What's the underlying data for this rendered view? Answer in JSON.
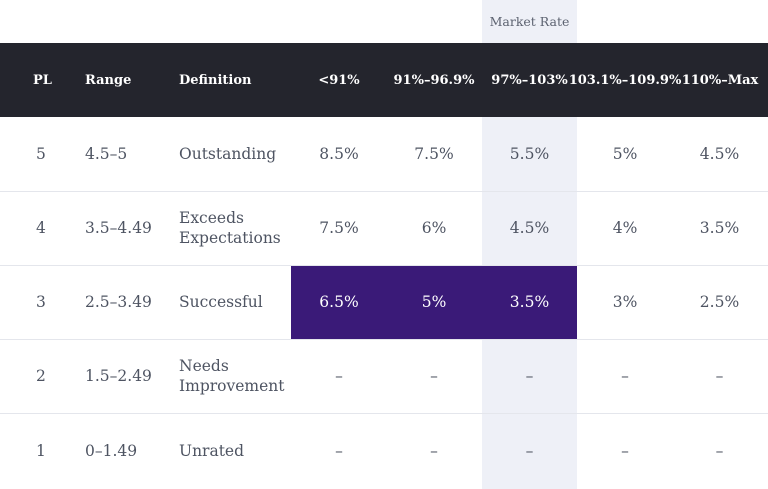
{
  "market_rate_label": "Market Rate",
  "headers": [
    "PL",
    "Range",
    "Definition",
    "<91%",
    "91%–96.9%",
    "97%–103%",
    "103.1%–109.9%",
    "110%–Max"
  ],
  "rows": [
    {
      "pl": "5",
      "range": "4.5–5",
      "definition": [
        "Outstanding"
      ],
      "values": [
        "8.5%",
        "7.5%",
        "5.5%",
        "5%",
        "4.5%"
      ]
    },
    {
      "pl": "4",
      "range": "3.5–4.49",
      "definition": [
        "Exceeds",
        "Expectations"
      ],
      "values": [
        "7.5%",
        "6%",
        "4.5%",
        "4%",
        "3.5%"
      ]
    },
    {
      "pl": "3",
      "range": "2.5–3.49",
      "definition": [
        "Successful"
      ],
      "values": [
        "6.5%",
        "5%",
        "3.5%",
        "3%",
        "2.5%"
      ]
    },
    {
      "pl": "2",
      "range": "1.5–2.49",
      "definition": [
        "Needs",
        "Improvement"
      ],
      "values": [
        "–",
        "–",
        "–",
        "–",
        "–"
      ]
    },
    {
      "pl": "1",
      "range": "0–1.49",
      "definition": [
        "Unrated"
      ],
      "values": [
        "–",
        "–",
        "–",
        "–",
        "–"
      ]
    }
  ],
  "highlight": {
    "row": 2,
    "columns": [
      0,
      1,
      2
    ],
    "color": "#3a1a78"
  },
  "colors": {
    "header_bg": "#24252d",
    "market_column_bg": "#eef0f7",
    "text": "#4e5462"
  }
}
